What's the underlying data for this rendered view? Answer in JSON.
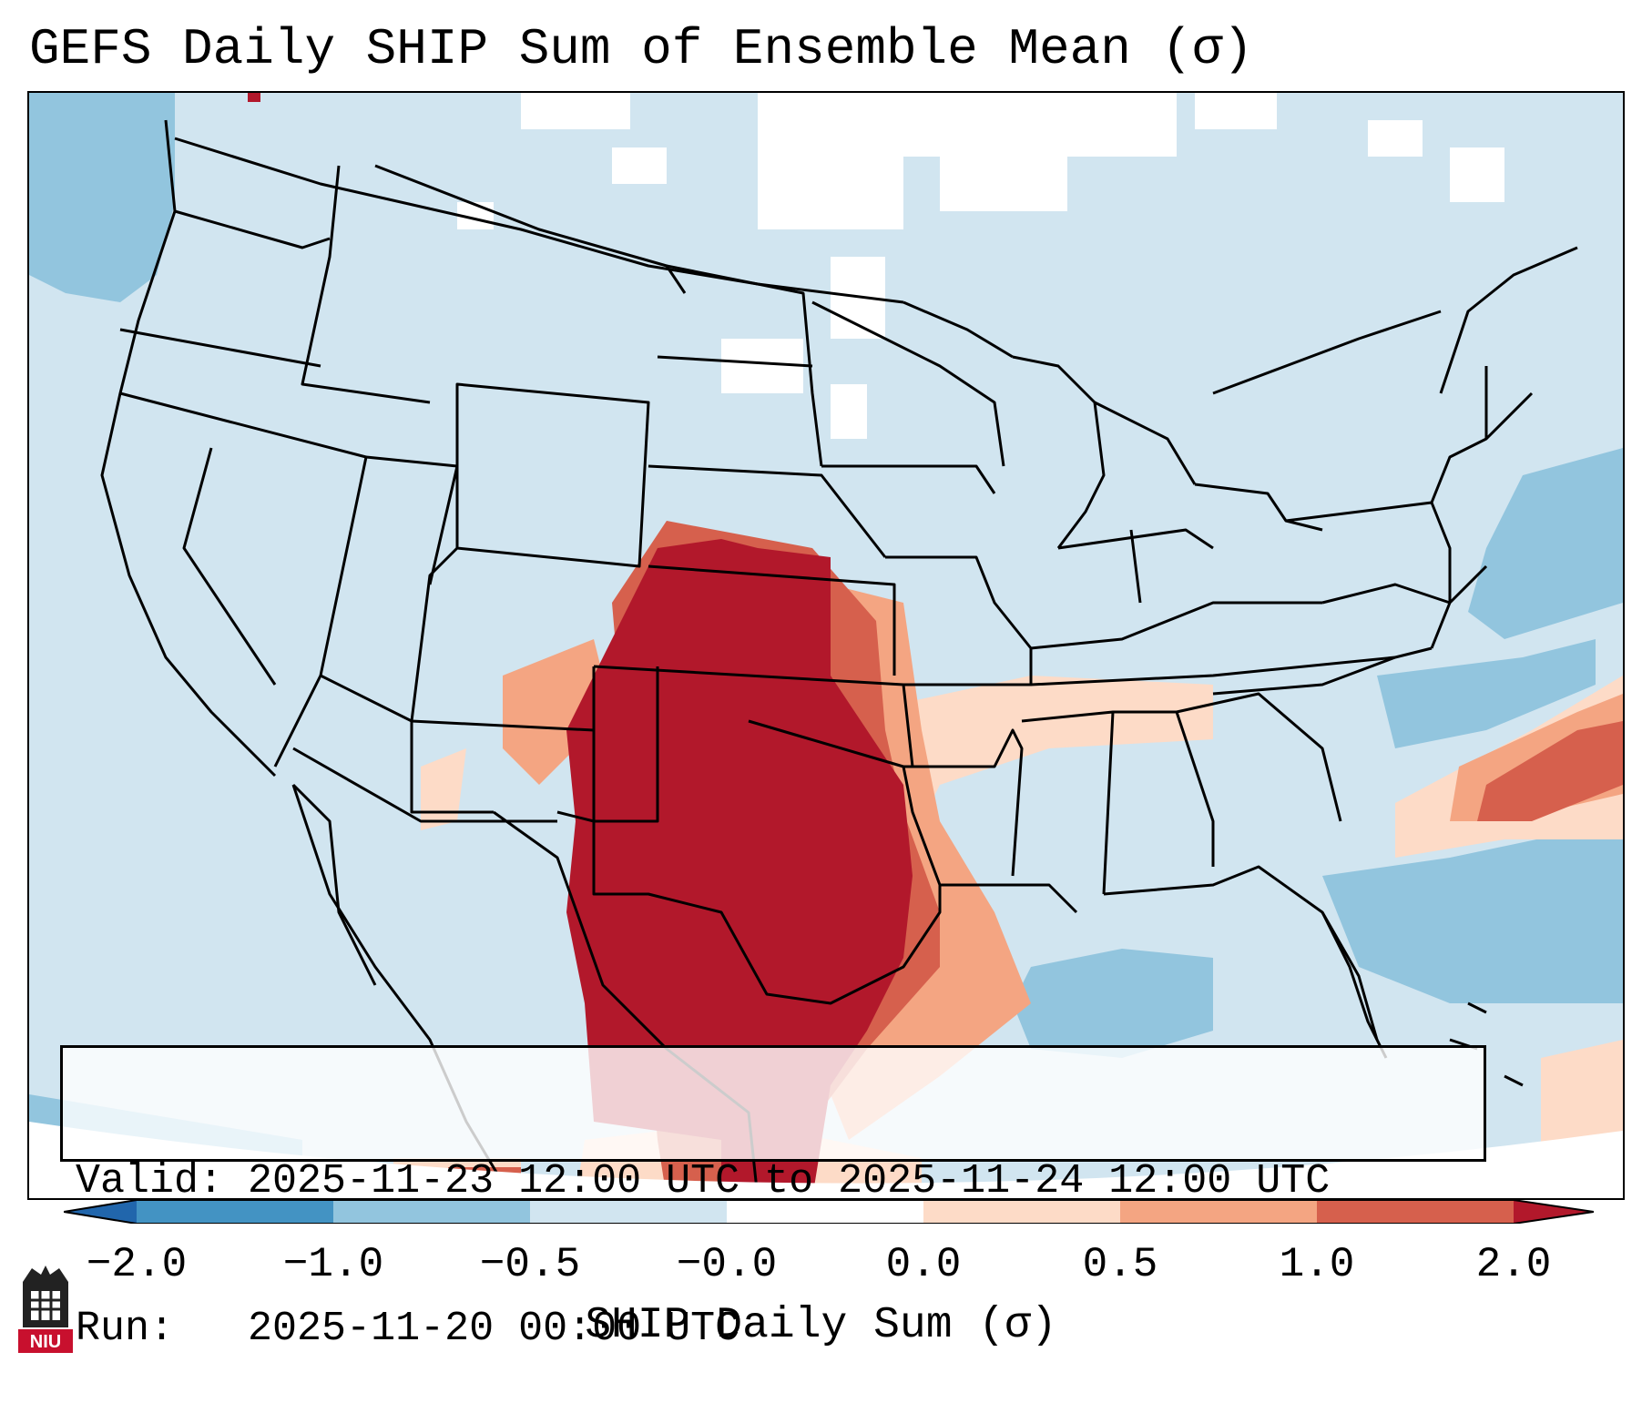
{
  "title": "GEFS Daily SHIP Sum of Ensemble Mean (σ)",
  "info": {
    "valid_label": "Valid:",
    "valid_value": "2025-11-23 12:00 UTC to 2025-11-24 12:00 UTC",
    "run_label": "Run:",
    "run_value": "2025-11-20 00:00 UTC"
  },
  "colorbar": {
    "label": "SHIP Daily Sum (σ)",
    "ticks": [
      "−2.0",
      "−1.0",
      "−0.5",
      "−0.0",
      "0.0",
      "0.5",
      "1.0",
      "2.0"
    ],
    "colors": {
      "below_min": "#2166ac",
      "neg_2_to_neg_1": "#4393c3",
      "neg_1_to_neg_05": "#92c5de",
      "neg_05_to_0": "#d1e5f0",
      "zero_to_05": "#fddbc7",
      "p05_to_1": "#f4a582",
      "p1_to_2": "#d6604d",
      "above_max": "#b2182b"
    }
  },
  "logo": {
    "text": "NIU",
    "name": "niu-logo-icon"
  }
}
